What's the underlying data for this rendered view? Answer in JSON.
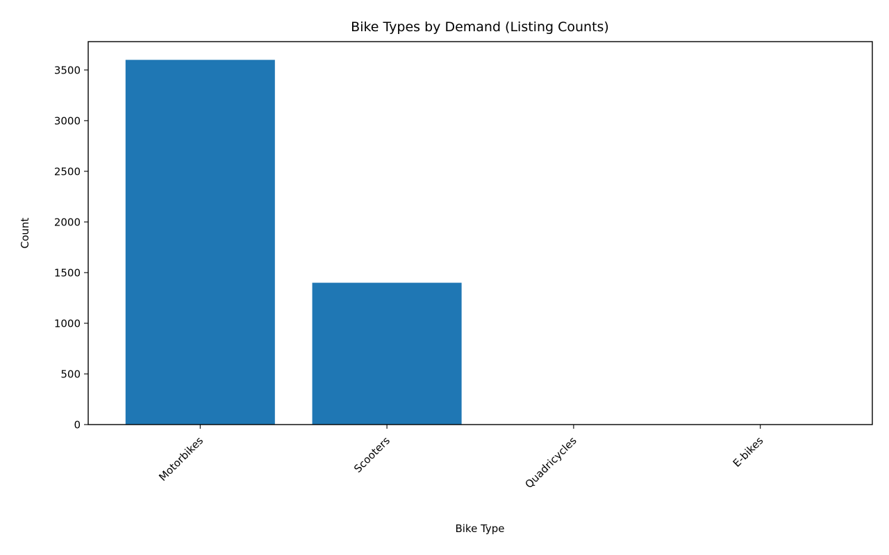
{
  "chart_data": {
    "type": "bar",
    "title": "Bike Types by Demand (Listing Counts)",
    "xlabel": "Bike Type",
    "ylabel": "Count",
    "categories": [
      "Motorbikes",
      "Scooters",
      "Quadricycles",
      "E-bikes"
    ],
    "values": [
      3600,
      1400,
      3,
      2
    ],
    "ylim": [
      0,
      3780
    ],
    "yticks": [
      0,
      500,
      1000,
      1500,
      2000,
      2500,
      3000,
      3500
    ],
    "ytick_labels": [
      "0",
      "500",
      "1000",
      "1500",
      "2000",
      "2500",
      "3000",
      "3500"
    ],
    "bar_color": "#1f77b4",
    "grid": false,
    "legend": "none"
  }
}
